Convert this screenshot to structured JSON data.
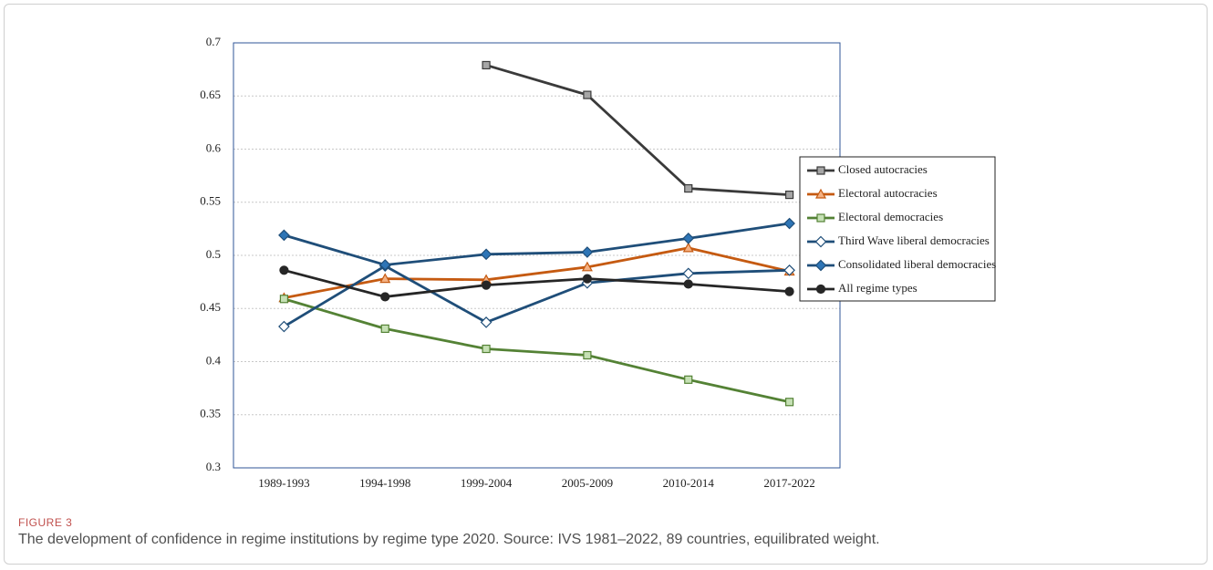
{
  "figure_label": "FIGURE 3",
  "caption": "The development of confidence in regime institutions by regime type 2020. Source: IVS 1981–2022, 89 countries, equilibrated weight.",
  "chart_data": {
    "type": "line",
    "categories": [
      "1989-1993",
      "1994-1998",
      "1999-2004",
      "2005-2009",
      "2010-2014",
      "2017-2022"
    ],
    "ylim": [
      0.3,
      0.7
    ],
    "yticks": [
      0.3,
      0.35,
      0.4,
      0.45,
      0.5,
      0.55,
      0.6,
      0.65,
      0.7
    ],
    "grid": true,
    "legend": "right",
    "series": [
      {
        "name": "Closed autocracies",
        "color": "#3a3a3a",
        "marker": "square",
        "marker_fill": "#a6a6a6",
        "values": [
          null,
          null,
          0.679,
          0.651,
          0.563,
          0.557
        ]
      },
      {
        "name": "Electoral autocracies",
        "color": "#c55a11",
        "marker": "triangle",
        "marker_fill": "#f4b183",
        "values": [
          0.46,
          0.478,
          0.477,
          0.489,
          0.507,
          0.485
        ]
      },
      {
        "name": "Electoral democracies",
        "color": "#548235",
        "marker": "square",
        "marker_fill": "#c5e0b4",
        "values": [
          0.459,
          0.431,
          0.412,
          0.406,
          0.383,
          0.362
        ]
      },
      {
        "name": "Third Wave liberal democracies",
        "color": "#1f4e79",
        "marker": "diamond",
        "marker_fill": "#ffffff",
        "values": [
          0.433,
          0.49,
          0.437,
          0.474,
          0.483,
          0.486
        ]
      },
      {
        "name": "Consolidated liberal democracies",
        "color": "#1f4e79",
        "marker": "diamond",
        "marker_fill": "#2e75b6",
        "values": [
          0.519,
          0.491,
          0.501,
          0.503,
          0.516,
          0.53
        ]
      },
      {
        "name": "All regime types",
        "color": "#262626",
        "marker": "circle",
        "marker_fill": "#262626",
        "values": [
          0.486,
          0.461,
          0.472,
          0.478,
          0.473,
          0.466
        ]
      }
    ]
  }
}
